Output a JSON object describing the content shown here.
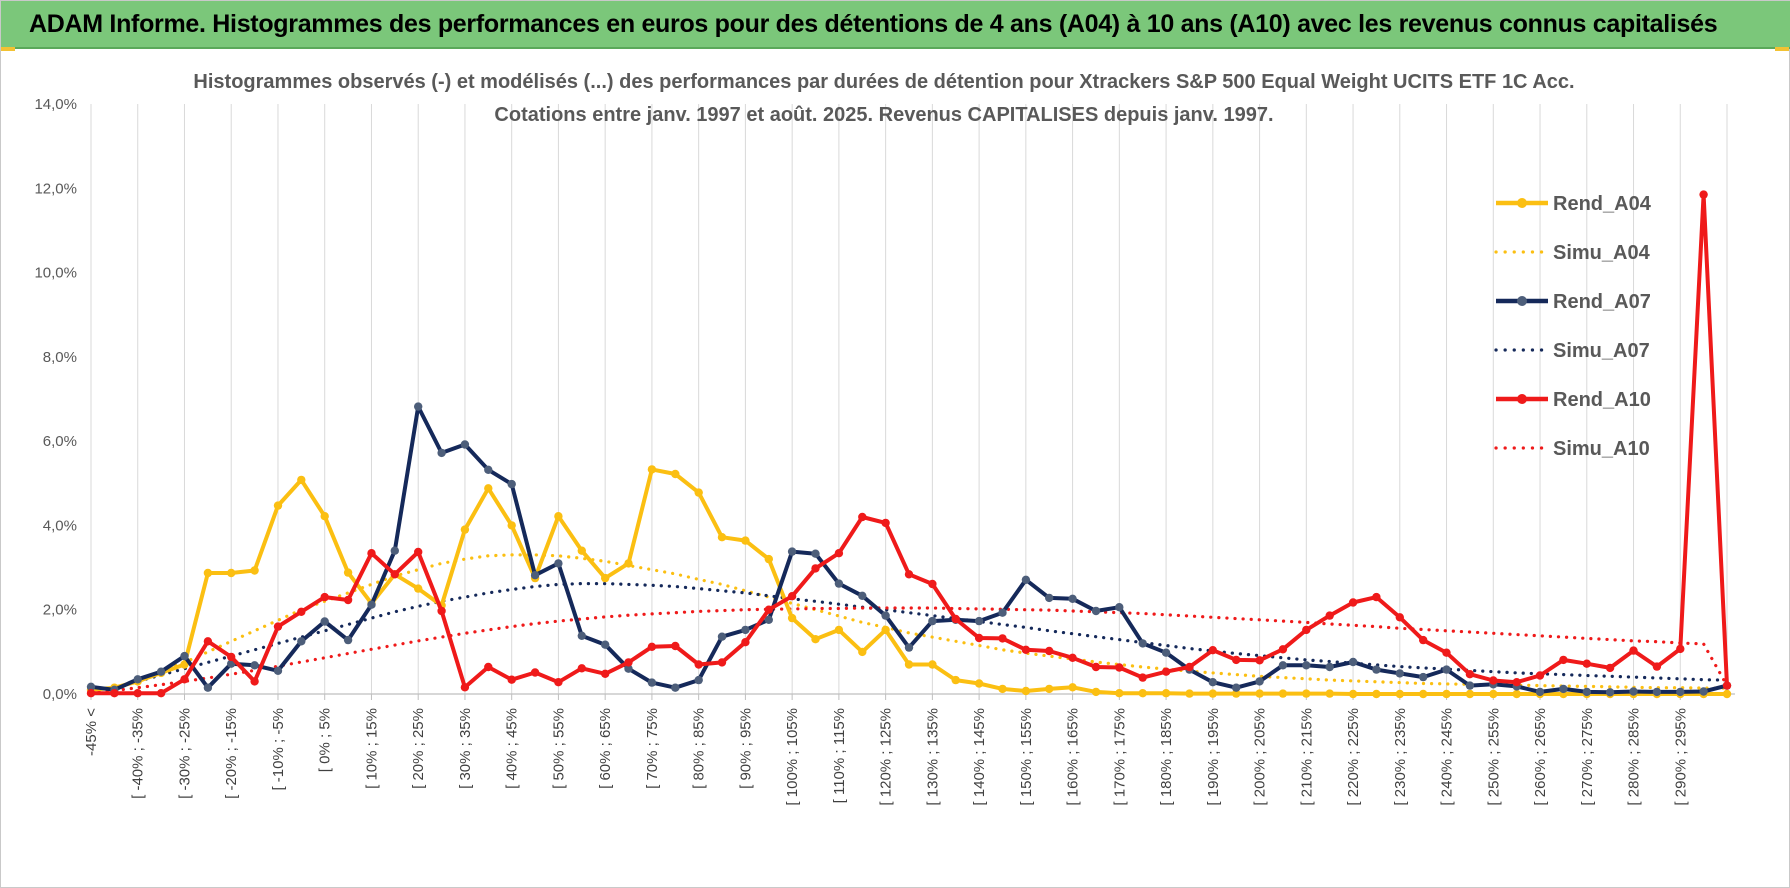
{
  "banner": {
    "title": "ADAM Informe. Histogrammes des performances en euros pour des détentions de 4 ans (A04) à 10 ans (A10) avec les revenus connus capitalisés"
  },
  "colors": {
    "banner_bg": "#7bc77a",
    "a04": "#fbbf12",
    "a07": "#15295a",
    "a07_marker": "#4d5e7a",
    "a10": "#ef1a1a",
    "grid": "#d9d9d9"
  },
  "chart_data": {
    "type": "line",
    "title": [
      "Histogrammes observés (-) et modélisés (...) des performances par durées de détention pour Xtrackers S&P 500 Equal Weight UCITS ETF 1C Acc.",
      "Cotations entre janv. 1997 et août. 2025. Revenus CAPITALISES depuis janv. 1997."
    ],
    "ylim": [
      0,
      14
    ],
    "y_ticks": [
      "0,0%",
      "2,0%",
      "4,0%",
      "6,0%",
      "8,0%",
      "10,0%",
      "12,0%",
      "14,0%"
    ],
    "grid": "vertical",
    "legend_position": "right",
    "x_tick_labels": [
      "-45% <",
      "[ -40% ; -35%",
      "[ -30% ; -25%",
      "[ -20% ; -15%",
      "[ -10% ; -5%",
      "[ 0% ; 5%",
      "[ 10% ; 15%",
      "[ 20% ; 25%",
      "[ 30% ; 35%",
      "[ 40% ; 45%",
      "[ 50% ; 55%",
      "[ 60% ; 65%",
      "[ 70% ; 75%",
      "[ 80% ; 85%",
      "[ 90% ; 95%",
      "[ 100% ; 105%",
      "[ 110% ; 115%",
      "[ 120% ; 125%",
      "[ 130% ; 135%",
      "[ 140% ; 145%",
      "[ 150% ; 155%",
      "[ 160% ; 165%",
      "[ 170% ; 175%",
      "[ 180% ; 185%",
      "[ 190% ; 195%",
      "[ 200% ; 205%",
      "[ 210% ; 215%",
      "[ 220% ; 225%",
      "[ 230% ; 235%",
      "[ 240% ; 245%",
      "[ 250% ; 255%",
      "[ 260% ; 265%",
      "[ 270% ; 275%",
      "[ 280% ; 285%",
      "[ 290% ; 295%"
    ],
    "series": [
      {
        "name": "Rend_A04",
        "style": "solid",
        "color": "#fbbf12",
        "values": [
          0.1,
          0.15,
          0.3,
          0.5,
          0.7,
          2.87,
          2.87,
          2.93,
          4.47,
          5.08,
          4.22,
          2.88,
          2.15,
          2.84,
          2.5,
          2.1,
          3.9,
          4.88,
          4.0,
          2.75,
          4.22,
          3.4,
          2.75,
          3.1,
          5.33,
          5.22,
          4.78,
          3.72,
          3.64,
          3.2,
          1.8,
          1.3,
          1.52,
          1.0,
          1.52,
          0.7,
          0.7,
          0.33,
          0.25,
          0.12,
          0.07,
          0.12,
          0.16,
          0.05,
          0.02,
          0.02,
          0.02,
          0.01,
          0.01,
          0.01,
          0.01,
          0.01,
          0.01,
          0.01,
          0.0,
          0.0,
          0.0,
          0.0,
          0.0,
          0.0,
          0.0,
          0.0,
          0.0,
          0.0,
          0.0,
          0.0,
          0.0,
          0.0,
          0.0,
          0.0,
          0.0
        ]
      },
      {
        "name": "Simu_A04",
        "style": "dotted",
        "color": "#fbbf12",
        "values": [
          0.05,
          0.15,
          0.3,
          0.55,
          0.75,
          1.0,
          1.25,
          1.5,
          1.75,
          2.0,
          2.2,
          2.4,
          2.6,
          2.8,
          2.95,
          3.1,
          3.2,
          3.28,
          3.3,
          3.3,
          3.28,
          3.22,
          3.15,
          3.05,
          2.95,
          2.85,
          2.72,
          2.6,
          2.45,
          2.3,
          2.15,
          2.0,
          1.85,
          1.7,
          1.58,
          1.45,
          1.35,
          1.25,
          1.15,
          1.05,
          0.97,
          0.9,
          0.83,
          0.76,
          0.7,
          0.64,
          0.59,
          0.54,
          0.5,
          0.46,
          0.42,
          0.39,
          0.36,
          0.33,
          0.31,
          0.29,
          0.27,
          0.25,
          0.24,
          0.23,
          0.22,
          0.21,
          0.2,
          0.19,
          0.18,
          0.17,
          0.16,
          0.15,
          0.15,
          0.14,
          0.14
        ]
      },
      {
        "name": "Rend_A07",
        "style": "solid",
        "color": "#15295a",
        "values": [
          0.17,
          0.1,
          0.35,
          0.53,
          0.9,
          0.15,
          0.72,
          0.68,
          0.55,
          1.25,
          1.72,
          1.28,
          2.12,
          3.4,
          6.82,
          5.72,
          5.92,
          5.32,
          4.98,
          2.82,
          3.1,
          1.38,
          1.17,
          0.6,
          0.27,
          0.15,
          0.33,
          1.36,
          1.52,
          1.76,
          3.38,
          3.33,
          2.62,
          2.33,
          1.86,
          1.1,
          1.73,
          1.76,
          1.73,
          1.93,
          2.71,
          2.28,
          2.26,
          1.97,
          2.06,
          1.2,
          0.98,
          0.58,
          0.28,
          0.15,
          0.3,
          0.68,
          0.68,
          0.64,
          0.76,
          0.58,
          0.49,
          0.4,
          0.58,
          0.2,
          0.23,
          0.18,
          0.05,
          0.12,
          0.05,
          0.04,
          0.06,
          0.05,
          0.05,
          0.06,
          0.2
        ]
      },
      {
        "name": "Simu_A07",
        "style": "dotted",
        "color": "#15295a",
        "values": [
          0.05,
          0.15,
          0.3,
          0.45,
          0.6,
          0.75,
          0.9,
          1.05,
          1.2,
          1.35,
          1.5,
          1.65,
          1.8,
          1.95,
          2.08,
          2.2,
          2.3,
          2.4,
          2.48,
          2.55,
          2.6,
          2.62,
          2.62,
          2.6,
          2.58,
          2.55,
          2.5,
          2.45,
          2.4,
          2.33,
          2.26,
          2.2,
          2.13,
          2.06,
          2.0,
          1.93,
          1.86,
          1.79,
          1.72,
          1.65,
          1.58,
          1.5,
          1.43,
          1.36,
          1.29,
          1.22,
          1.15,
          1.08,
          1.02,
          0.96,
          0.91,
          0.86,
          0.81,
          0.77,
          0.73,
          0.69,
          0.65,
          0.62,
          0.59,
          0.56,
          0.53,
          0.5,
          0.48,
          0.46,
          0.44,
          0.42,
          0.4,
          0.38,
          0.36,
          0.34,
          0.33
        ]
      },
      {
        "name": "Rend_A10",
        "style": "solid",
        "color": "#ef1a1a",
        "values": [
          0.02,
          0.02,
          0.02,
          0.02,
          0.35,
          1.25,
          0.88,
          0.3,
          1.6,
          1.95,
          2.3,
          2.23,
          3.34,
          2.84,
          3.37,
          1.97,
          0.16,
          0.64,
          0.34,
          0.51,
          0.28,
          0.61,
          0.48,
          0.75,
          1.12,
          1.14,
          0.7,
          0.75,
          1.23,
          2.0,
          2.32,
          2.98,
          3.34,
          4.2,
          4.06,
          2.84,
          2.61,
          1.78,
          1.33,
          1.32,
          1.05,
          1.02,
          0.86,
          0.64,
          0.63,
          0.39,
          0.53,
          0.64,
          1.04,
          0.81,
          0.8,
          1.06,
          1.52,
          1.86,
          2.17,
          2.3,
          1.82,
          1.28,
          0.98,
          0.47,
          0.32,
          0.28,
          0.44,
          0.81,
          0.72,
          0.62,
          1.03,
          0.65,
          1.07,
          11.85,
          0.2
        ]
      },
      {
        "name": "Simu_A10",
        "style": "dotted",
        "color": "#ef1a1a",
        "values": [
          0.03,
          0.08,
          0.15,
          0.22,
          0.3,
          0.38,
          0.47,
          0.56,
          0.66,
          0.76,
          0.86,
          0.96,
          1.06,
          1.16,
          1.26,
          1.35,
          1.44,
          1.52,
          1.6,
          1.67,
          1.73,
          1.78,
          1.83,
          1.87,
          1.9,
          1.93,
          1.96,
          1.98,
          2.0,
          2.01,
          2.02,
          2.03,
          2.03,
          2.04,
          2.04,
          2.04,
          2.04,
          2.03,
          2.02,
          2.01,
          2.0,
          1.99,
          1.97,
          1.95,
          1.93,
          1.91,
          1.88,
          1.85,
          1.82,
          1.79,
          1.76,
          1.73,
          1.7,
          1.66,
          1.63,
          1.6,
          1.56,
          1.53,
          1.5,
          1.47,
          1.44,
          1.41,
          1.38,
          1.35,
          1.32,
          1.29,
          1.26,
          1.24,
          1.21,
          1.19,
          0.2
        ]
      }
    ]
  }
}
